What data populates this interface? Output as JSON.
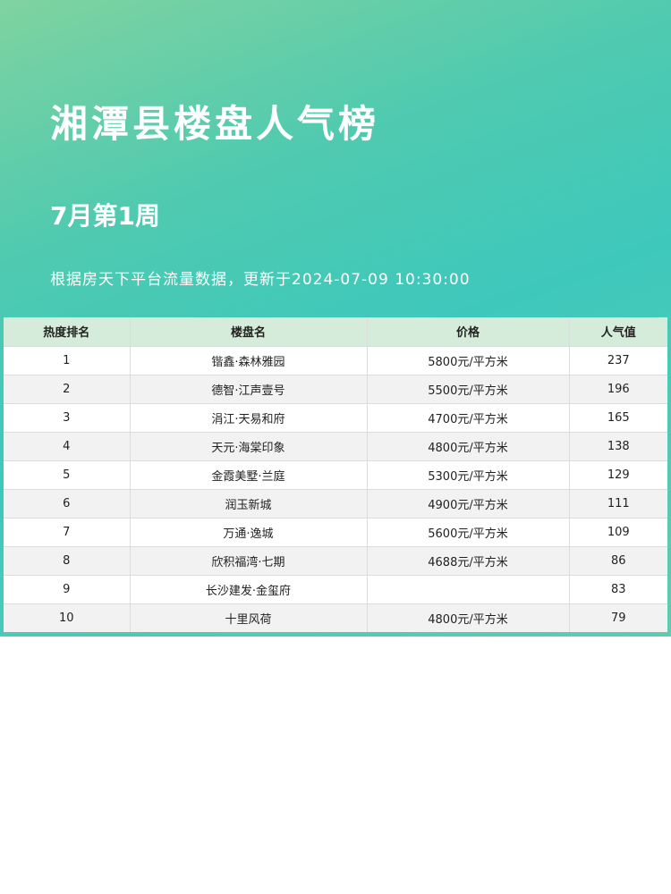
{
  "title": "湘潭县楼盘人气榜",
  "week": "7月第1周",
  "update": "根据房天下平台流量数据，更新于2024-07-09 10:30:00",
  "colors": {
    "header_bg": "#3ec8bc",
    "table_header": "#d4ecd9"
  },
  "table": {
    "headers": [
      "热度排名",
      "楼盘名",
      "价格",
      "人气值"
    ],
    "rows": [
      [
        "1",
        "锴鑫·森林雅园",
        "5800元/平方米",
        "237"
      ],
      [
        "2",
        "德智·江声壹号",
        "5500元/平方米",
        "196"
      ],
      [
        "3",
        "涓江·天易和府",
        "4700元/平方米",
        "165"
      ],
      [
        "4",
        "天元·海棠印象",
        "4800元/平方米",
        "138"
      ],
      [
        "5",
        "金霞美墅·兰庭",
        "5300元/平方米",
        "129"
      ],
      [
        "6",
        "润玉新城",
        "4900元/平方米",
        "111"
      ],
      [
        "7",
        "万通·逸城",
        "5600元/平方米",
        "109"
      ],
      [
        "8",
        "欣积福湾·七期",
        "4688元/平方米",
        "86"
      ],
      [
        "9",
        "长沙建发·金玺府",
        "",
        "83"
      ],
      [
        "10",
        "十里风荷",
        "4800元/平方米",
        "79"
      ]
    ]
  }
}
